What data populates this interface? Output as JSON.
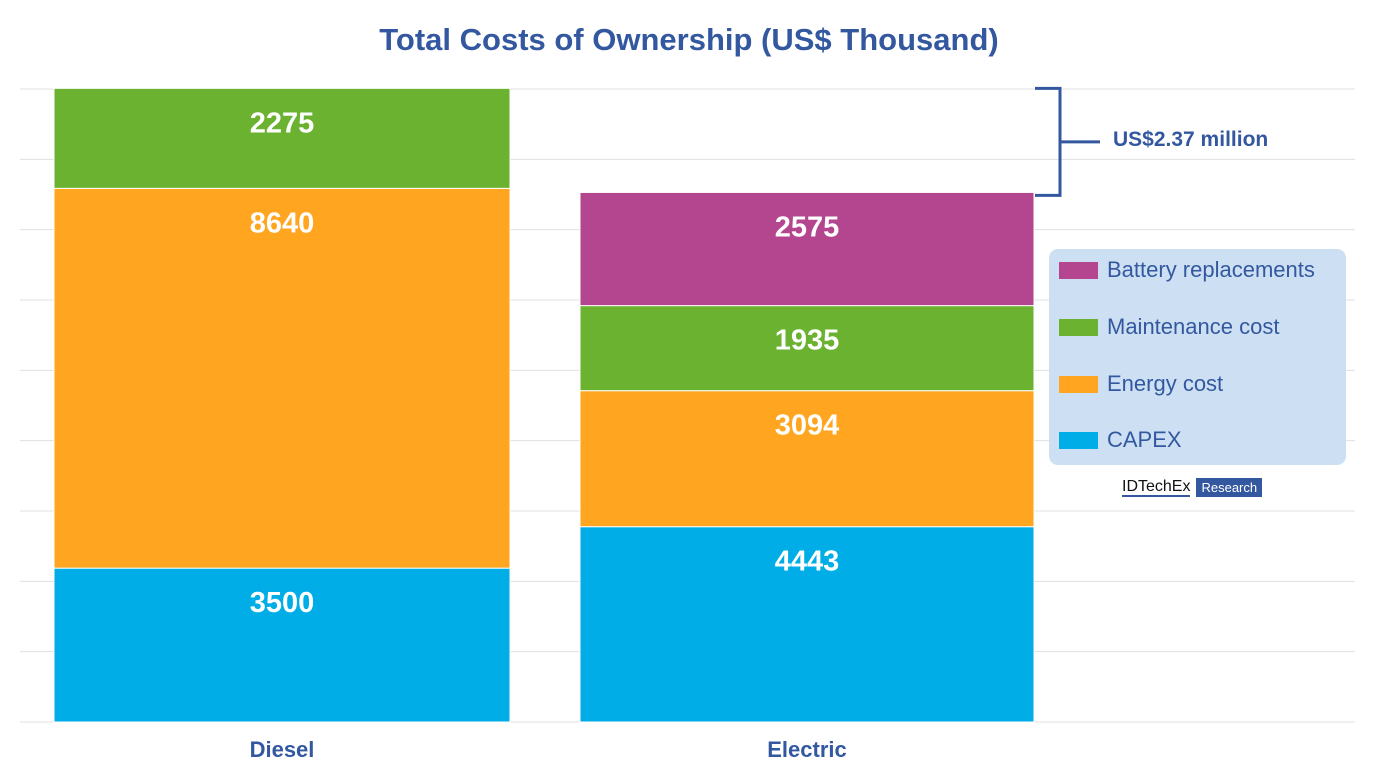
{
  "chart_data": {
    "type": "bar",
    "stacked": true,
    "title": "Total Costs of Ownership (US$ Thousand)",
    "categories": [
      "Diesel",
      "Electric"
    ],
    "series": [
      {
        "name": "CAPEX",
        "color": "#00ade6",
        "values": [
          3500,
          4443
        ]
      },
      {
        "name": "Energy cost",
        "color": "#ffa520",
        "values": [
          8640,
          3094
        ]
      },
      {
        "name": "Maintenance cost",
        "color": "#6ab22f",
        "values": [
          2275,
          1935
        ]
      },
      {
        "name": "Battery replacements",
        "color": "#b3468f",
        "values": [
          0,
          2575
        ]
      }
    ],
    "ylim": [
      0,
      14400
    ],
    "grid": true,
    "legend": "right",
    "annotation": "US$2.37 million",
    "data_labels": true
  },
  "logo": {
    "name": "IDTechEx",
    "tag": "Research"
  }
}
